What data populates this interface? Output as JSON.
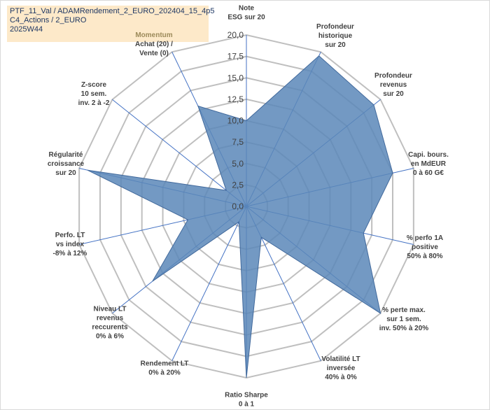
{
  "header": {
    "line1": "PTF_11_Val / ADAMRendement_2_EURO_202404_15_4p5",
    "line2": "C4_Actions / 2_EURO",
    "line3": "2025W44"
  },
  "chart_data": {
    "type": "radar",
    "title": "PTF_11_Val / ADAMRendement_2_EURO_202404_15_4p5",
    "rlim": [
      0,
      20
    ],
    "ticks": [
      "0,0",
      "2,5",
      "5,0",
      "7,5",
      "10,0",
      "12,5",
      "15,0",
      "17,5",
      "20,0"
    ],
    "tick_values": [
      0,
      2.5,
      5,
      7.5,
      10,
      12.5,
      15,
      17.5,
      20
    ],
    "axes": [
      {
        "lines": [
          "Note",
          "ESG sur 20"
        ],
        "value": 10.0,
        "anchor": "middle"
      },
      {
        "lines": [
          "Profondeur",
          "historique",
          "sur 20"
        ],
        "value": 19.5,
        "anchor": "middle"
      },
      {
        "lines": [
          "Profondeur",
          "revenus",
          "sur 20"
        ],
        "value": 19.0,
        "anchor": "middle"
      },
      {
        "lines": [
          "Capi. bours.",
          "en MdEUR",
          "0 à 60 G€"
        ],
        "value": 17.5,
        "anchor": "middle"
      },
      {
        "lines": [
          "% perfo 1A",
          "positive",
          "50% à 80%"
        ],
        "value": 14.0,
        "anchor": "middle"
      },
      {
        "lines": [
          "% perte max.",
          "sur 1 sem.",
          "inv. 50% à 20%"
        ],
        "value": 20.0,
        "anchor": "middle"
      },
      {
        "lines": [
          "Volatilité LT",
          "inversée",
          "40% à 0%"
        ],
        "value": 4.0,
        "anchor": "middle"
      },
      {
        "lines": [
          "Ratio Sharpe",
          "0 à 1"
        ],
        "value": 20.0,
        "anchor": "middle"
      },
      {
        "lines": [
          "Rendement LT",
          "0% à 20%"
        ],
        "value": 2.0,
        "anchor": "middle"
      },
      {
        "lines": [
          "Niveau LT",
          "revenus",
          "reccurents",
          "0% à 6%"
        ],
        "value": 14.0,
        "anchor": "middle"
      },
      {
        "lines": [
          "Perfo. LT",
          "vs index",
          "-8% à 12%"
        ],
        "value": 7.0,
        "anchor": "middle"
      },
      {
        "lines": [
          "Régularité",
          "croissance",
          "sur 20"
        ],
        "value": 19.0,
        "anchor": "middle"
      },
      {
        "lines": [
          "Z-score",
          "10 sem.",
          "inv. 2 à -2"
        ],
        "value": 3.0,
        "anchor": "middle"
      },
      {
        "lines": [
          "Momentum",
          "Achat (20) /",
          "Vente (0)"
        ],
        "value": 13.0,
        "anchor": "middle",
        "highlight_first_line": true
      }
    ],
    "series": [
      {
        "name": "PTF_11_Val",
        "color": "#4f7bb0"
      }
    ],
    "grid": true
  },
  "colors": {
    "grid": "#bfbfbf",
    "spoke": "#4472c4",
    "fill": "#5b87b9",
    "stroke": "#41699c",
    "title_bg": "#fde9c9"
  }
}
